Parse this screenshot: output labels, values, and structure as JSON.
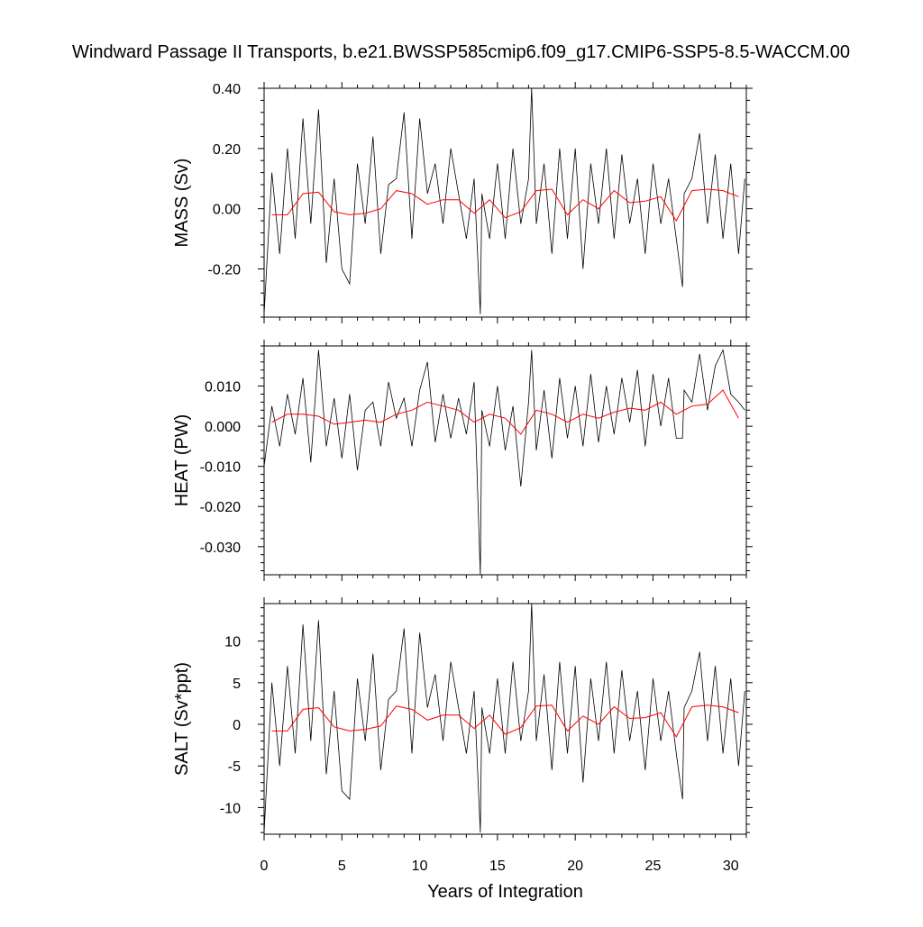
{
  "title": "Windward Passage II Transports, b.e21.BWSSP585cmip6.f09_g17.CMIP6-SSP5-8.5-WACCM.00",
  "xlabel": "Years of Integration",
  "x_ticks": [
    "0",
    "5",
    "10",
    "15",
    "20",
    "25",
    "30"
  ],
  "colors": {
    "raw": "#000000",
    "smoothed": "#ff0000"
  },
  "chart_data": [
    {
      "type": "line",
      "ylabel": "MASS (Sv)",
      "xlim": [
        0,
        31
      ],
      "ylim": [
        -0.36,
        0.4
      ],
      "yticks": [
        -0.2,
        0.0,
        0.2,
        0.4
      ],
      "ytick_labels": [
        "-0.20",
        "0.00",
        "0.20",
        "0.40"
      ],
      "series": [
        {
          "x": [
            0.0,
            0.5,
            1.0,
            1.5,
            2.0,
            2.5,
            3.0,
            3.5,
            4.0,
            4.5,
            5.0,
            5.5,
            6.0,
            6.5,
            7.0,
            7.5,
            8.0,
            8.5,
            9.0,
            9.5,
            10.0,
            10.5,
            11.0,
            11.5,
            12.0,
            12.5,
            13.0,
            13.5,
            13.9,
            14.0,
            14.5,
            15.0,
            15.5,
            16.0,
            16.5,
            17.0,
            17.2,
            17.5,
            18.0,
            18.5,
            19.0,
            19.5,
            20.0,
            20.5,
            21.0,
            21.5,
            22.0,
            22.5,
            23.0,
            23.5,
            24.0,
            24.5,
            25.0,
            25.5,
            26.0,
            26.5,
            26.9,
            27.0,
            27.5,
            28.0,
            28.5,
            29.0,
            29.5,
            30.0,
            30.5,
            30.9
          ],
          "y": [
            -0.35,
            0.12,
            -0.15,
            0.2,
            -0.1,
            0.3,
            -0.05,
            0.33,
            -0.18,
            0.1,
            -0.2,
            -0.25,
            0.15,
            -0.05,
            0.24,
            -0.15,
            0.08,
            0.1,
            0.32,
            -0.1,
            0.3,
            0.05,
            0.15,
            -0.05,
            0.2,
            0.05,
            -0.1,
            0.1,
            -0.35,
            0.05,
            -0.1,
            0.15,
            -0.1,
            0.2,
            -0.05,
            0.1,
            0.4,
            -0.05,
            0.15,
            -0.15,
            0.2,
            -0.1,
            0.2,
            -0.2,
            0.15,
            -0.05,
            0.2,
            -0.1,
            0.18,
            -0.05,
            0.1,
            -0.15,
            0.15,
            -0.05,
            0.1,
            -0.1,
            -0.26,
            0.05,
            0.1,
            0.25,
            -0.05,
            0.18,
            -0.1,
            0.15,
            -0.15,
            0.1
          ]
        },
        {
          "x": [
            0.5,
            1.5,
            2.5,
            3.5,
            4.5,
            5.5,
            6.5,
            7.5,
            8.5,
            9.5,
            10.5,
            11.5,
            12.5,
            13.5,
            14.5,
            15.5,
            16.5,
            17.5,
            18.5,
            19.5,
            20.5,
            21.5,
            22.5,
            23.5,
            24.5,
            25.5,
            26.5,
            27.5,
            28.5,
            29.5,
            30.5
          ],
          "y": [
            -0.02,
            -0.02,
            0.05,
            0.055,
            -0.01,
            -0.02,
            -0.015,
            0.0,
            0.06,
            0.05,
            0.015,
            0.03,
            0.03,
            -0.015,
            0.03,
            -0.03,
            -0.01,
            0.06,
            0.065,
            -0.02,
            0.03,
            0.0,
            0.06,
            0.02,
            0.025,
            0.04,
            -0.04,
            0.06,
            0.065,
            0.06,
            0.04
          ]
        }
      ]
    },
    {
      "type": "line",
      "ylabel": "HEAT (PW)",
      "xlim": [
        0,
        31
      ],
      "ylim": [
        -0.037,
        0.02
      ],
      "yticks": [
        -0.03,
        -0.02,
        -0.01,
        0.0,
        0.01
      ],
      "ytick_labels": [
        "-0.030",
        "-0.020",
        "-0.010",
        "0.000",
        "0.010"
      ],
      "series": [
        {
          "x": [
            0.0,
            0.5,
            1.0,
            1.5,
            2.0,
            2.5,
            3.0,
            3.5,
            4.0,
            4.5,
            5.0,
            5.5,
            6.0,
            6.5,
            7.0,
            7.5,
            8.0,
            8.5,
            9.0,
            9.5,
            10.0,
            10.5,
            11.0,
            11.5,
            12.0,
            12.5,
            13.0,
            13.5,
            13.9,
            14.0,
            14.5,
            15.0,
            15.5,
            16.0,
            16.5,
            17.0,
            17.2,
            17.5,
            18.0,
            18.5,
            19.0,
            19.5,
            20.0,
            20.5,
            21.0,
            21.5,
            22.0,
            22.5,
            23.0,
            23.5,
            24.0,
            24.5,
            25.0,
            25.5,
            26.0,
            26.5,
            26.9,
            27.0,
            27.5,
            28.0,
            28.5,
            29.0,
            29.5,
            30.0,
            30.5,
            30.9
          ],
          "y": [
            -0.01,
            0.005,
            -0.005,
            0.008,
            -0.002,
            0.012,
            -0.009,
            0.019,
            -0.005,
            0.007,
            -0.008,
            0.008,
            -0.011,
            0.004,
            0.006,
            -0.005,
            0.011,
            0.002,
            0.007,
            -0.005,
            0.009,
            0.016,
            -0.004,
            0.008,
            -0.003,
            0.007,
            -0.002,
            0.011,
            -0.037,
            0.004,
            -0.005,
            0.01,
            -0.006,
            0.005,
            -0.015,
            0.006,
            0.019,
            -0.006,
            0.009,
            -0.008,
            0.012,
            -0.003,
            0.01,
            -0.005,
            0.013,
            -0.004,
            0.01,
            -0.002,
            0.012,
            0.001,
            0.014,
            -0.005,
            0.013,
            0.0,
            0.012,
            -0.003,
            -0.003,
            0.009,
            0.006,
            0.018,
            0.004,
            0.015,
            0.019,
            0.008,
            0.006,
            0.004
          ]
        },
        {
          "x": [
            0.5,
            1.5,
            2.5,
            3.5,
            4.5,
            5.5,
            6.5,
            7.5,
            8.5,
            9.5,
            10.5,
            11.5,
            12.5,
            13.5,
            14.5,
            15.5,
            16.5,
            17.5,
            18.5,
            19.5,
            20.5,
            21.5,
            22.5,
            23.5,
            24.5,
            25.5,
            26.5,
            27.5,
            28.5,
            29.5,
            30.5
          ],
          "y": [
            0.001,
            0.003,
            0.003,
            0.0025,
            0.0005,
            0.001,
            0.0015,
            0.001,
            0.003,
            0.004,
            0.006,
            0.005,
            0.004,
            0.001,
            0.003,
            0.002,
            -0.002,
            0.004,
            0.003,
            0.001,
            0.003,
            0.002,
            0.0035,
            0.0045,
            0.004,
            0.006,
            0.003,
            0.005,
            0.0055,
            0.009,
            0.002
          ]
        }
      ]
    },
    {
      "type": "line",
      "ylabel": "SALT (Sv*ppt)",
      "xlim": [
        0,
        31
      ],
      "ylim": [
        -13.2,
        14.5
      ],
      "yticks": [
        -10,
        -5,
        0,
        5,
        10
      ],
      "ytick_labels": [
        "-10",
        "-5",
        "0",
        "5",
        "10"
      ],
      "series": [
        {
          "x": [
            0.0,
            0.5,
            1.0,
            1.5,
            2.0,
            2.5,
            3.0,
            3.5,
            4.0,
            4.5,
            5.0,
            5.5,
            6.0,
            6.5,
            7.0,
            7.5,
            8.0,
            8.5,
            9.0,
            9.5,
            10.0,
            10.5,
            11.0,
            11.5,
            12.0,
            12.5,
            13.0,
            13.5,
            13.9,
            14.0,
            14.5,
            15.0,
            15.5,
            16.0,
            16.5,
            17.0,
            17.2,
            17.5,
            18.0,
            18.5,
            19.0,
            19.5,
            20.0,
            20.5,
            21.0,
            21.5,
            22.0,
            22.5,
            23.0,
            23.5,
            24.0,
            24.5,
            25.0,
            25.5,
            26.0,
            26.5,
            26.9,
            27.0,
            27.5,
            28.0,
            28.5,
            29.0,
            29.5,
            30.0,
            30.5,
            30.9
          ],
          "y": [
            -13.0,
            5.0,
            -5.0,
            7.0,
            -3.5,
            12.0,
            -2.0,
            12.5,
            -6.0,
            4.0,
            -8.0,
            -9.0,
            5.5,
            -2.0,
            8.5,
            -5.5,
            3.0,
            4.0,
            11.5,
            -3.5,
            11.0,
            2.0,
            6.0,
            -2.0,
            7.5,
            2.0,
            -3.5,
            4.0,
            -13.0,
            2.0,
            -3.5,
            5.5,
            -3.5,
            7.5,
            -2.0,
            4.0,
            14.5,
            -2.0,
            6.0,
            -5.5,
            7.5,
            -3.5,
            7.0,
            -7.0,
            5.5,
            -2.0,
            7.5,
            -3.5,
            6.5,
            -2.0,
            4.0,
            -5.5,
            5.5,
            -2.0,
            4.0,
            -3.5,
            -9.0,
            2.0,
            4.0,
            8.7,
            -2.0,
            7.0,
            -3.5,
            5.5,
            -5.0,
            4.0
          ]
        },
        {
          "x": [
            0.5,
            1.5,
            2.5,
            3.5,
            4.5,
            5.5,
            6.5,
            7.5,
            8.5,
            9.5,
            10.5,
            11.5,
            12.5,
            13.5,
            14.5,
            15.5,
            16.5,
            17.5,
            18.5,
            19.5,
            20.5,
            21.5,
            22.5,
            23.5,
            24.5,
            25.5,
            26.5,
            27.5,
            28.5,
            29.5,
            30.5
          ],
          "y": [
            -0.8,
            -0.8,
            1.8,
            2.0,
            -0.3,
            -0.8,
            -0.6,
            -0.2,
            2.2,
            1.8,
            0.5,
            1.1,
            1.1,
            -0.5,
            1.1,
            -1.2,
            -0.4,
            2.2,
            2.3,
            -0.8,
            1.0,
            0.0,
            2.1,
            0.7,
            0.8,
            1.4,
            -1.5,
            2.1,
            2.3,
            2.1,
            1.4
          ]
        }
      ]
    }
  ]
}
